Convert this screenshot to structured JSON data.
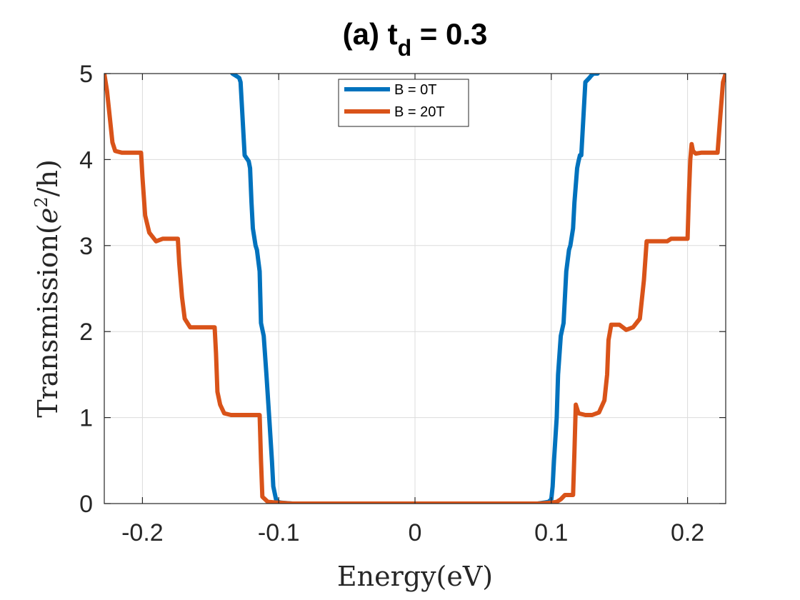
{
  "chart_data": {
    "type": "line",
    "title": {
      "main": "(a) t",
      "subscript": "d",
      "suffix": " = 0.3"
    },
    "xlabel": "Energy(eV)",
    "ylabel": {
      "prefix": "Transmission(",
      "base": "e",
      "sup": "2",
      "suffix": "/h)"
    },
    "xlim": [
      -0.228,
      0.228
    ],
    "ylim": [
      0,
      5
    ],
    "xticks": [
      -0.2,
      -0.1,
      0,
      0.1,
      0.2
    ],
    "xtick_labels": [
      "-0.2",
      "-0.1",
      "0",
      "0.1",
      "0.2"
    ],
    "yticks": [
      0,
      1,
      2,
      3,
      4,
      5
    ],
    "ytick_labels": [
      "0",
      "1",
      "2",
      "3",
      "4",
      "5"
    ],
    "grid": true,
    "legend_position": "top-center",
    "series": [
      {
        "name": "B = 0T",
        "color": "#0072BD",
        "x": [
          -0.134,
          -0.131,
          -0.129,
          -0.128,
          -0.125,
          -0.122,
          -0.121,
          -0.12,
          -0.119,
          -0.117,
          -0.116,
          -0.114,
          -0.113,
          -0.111,
          -0.109,
          -0.107,
          -0.105,
          -0.104,
          -0.102,
          -0.101,
          -0.098,
          -0.09,
          -0.06,
          -0.02,
          0,
          0.02,
          0.06,
          0.09,
          0.098,
          0.1,
          0.101,
          0.102,
          0.104,
          0.105,
          0.107,
          0.109,
          0.111,
          0.113,
          0.114,
          0.116,
          0.117,
          0.119,
          0.12,
          0.121,
          0.122,
          0.125,
          0.128,
          0.129,
          0.131,
          0.134
        ],
        "y": [
          5.0,
          4.97,
          4.95,
          4.9,
          4.05,
          3.98,
          3.9,
          3.5,
          3.2,
          3.0,
          2.95,
          2.7,
          2.1,
          1.95,
          1.5,
          1.0,
          0.5,
          0.2,
          0.05,
          0.02,
          0.01,
          0.0,
          0.0,
          0.0,
          0.0,
          0.0,
          0.0,
          0.0,
          0.02,
          0.05,
          0.2,
          0.5,
          1.0,
          1.5,
          1.95,
          2.1,
          2.7,
          2.95,
          3.0,
          3.2,
          3.5,
          3.9,
          3.98,
          4.05,
          4.05,
          4.9,
          4.95,
          4.97,
          5.0,
          5.0
        ]
      },
      {
        "name": "B = 20T",
        "color": "#D95319",
        "x": [
          -0.228,
          -0.226,
          -0.224,
          -0.222,
          -0.22,
          -0.215,
          -0.21,
          -0.201,
          -0.2,
          -0.198,
          -0.195,
          -0.19,
          -0.185,
          -0.182,
          -0.174,
          -0.173,
          -0.171,
          -0.169,
          -0.165,
          -0.16,
          -0.156,
          -0.147,
          -0.146,
          -0.145,
          -0.143,
          -0.14,
          -0.135,
          -0.125,
          -0.114,
          -0.113,
          -0.112,
          -0.108,
          -0.1,
          -0.09,
          -0.06,
          0,
          0.06,
          0.09,
          0.1,
          0.104,
          0.107,
          0.11,
          0.116,
          0.117,
          0.118,
          0.12,
          0.125,
          0.13,
          0.135,
          0.139,
          0.141,
          0.142,
          0.144,
          0.145,
          0.15,
          0.155,
          0.16,
          0.165,
          0.168,
          0.17,
          0.172,
          0.173,
          0.174,
          0.175,
          0.18,
          0.185,
          0.188,
          0.19,
          0.195,
          0.2,
          0.201,
          0.202,
          0.203,
          0.204,
          0.206,
          0.21,
          0.215,
          0.222,
          0.224,
          0.226,
          0.228
        ],
        "y": [
          5.0,
          4.8,
          4.5,
          4.2,
          4.1,
          4.08,
          4.08,
          4.08,
          3.8,
          3.35,
          3.15,
          3.05,
          3.08,
          3.08,
          3.08,
          2.8,
          2.4,
          2.15,
          2.05,
          2.05,
          2.05,
          2.05,
          1.75,
          1.3,
          1.15,
          1.05,
          1.03,
          1.03,
          1.03,
          0.5,
          0.08,
          0.02,
          0.01,
          0.0,
          0.0,
          0.0,
          0.0,
          0.0,
          0.01,
          0.02,
          0.05,
          0.1,
          0.1,
          0.6,
          1.15,
          1.05,
          1.03,
          1.03,
          1.06,
          1.2,
          1.5,
          1.9,
          2.08,
          2.08,
          2.08,
          2.02,
          2.05,
          2.15,
          2.6,
          3.05,
          3.05,
          3.05,
          3.05,
          3.05,
          3.05,
          3.05,
          3.08,
          3.08,
          3.08,
          3.08,
          3.6,
          4.0,
          4.18,
          4.1,
          4.07,
          4.08,
          4.08,
          4.08,
          4.5,
          4.9,
          5.0
        ]
      }
    ]
  }
}
